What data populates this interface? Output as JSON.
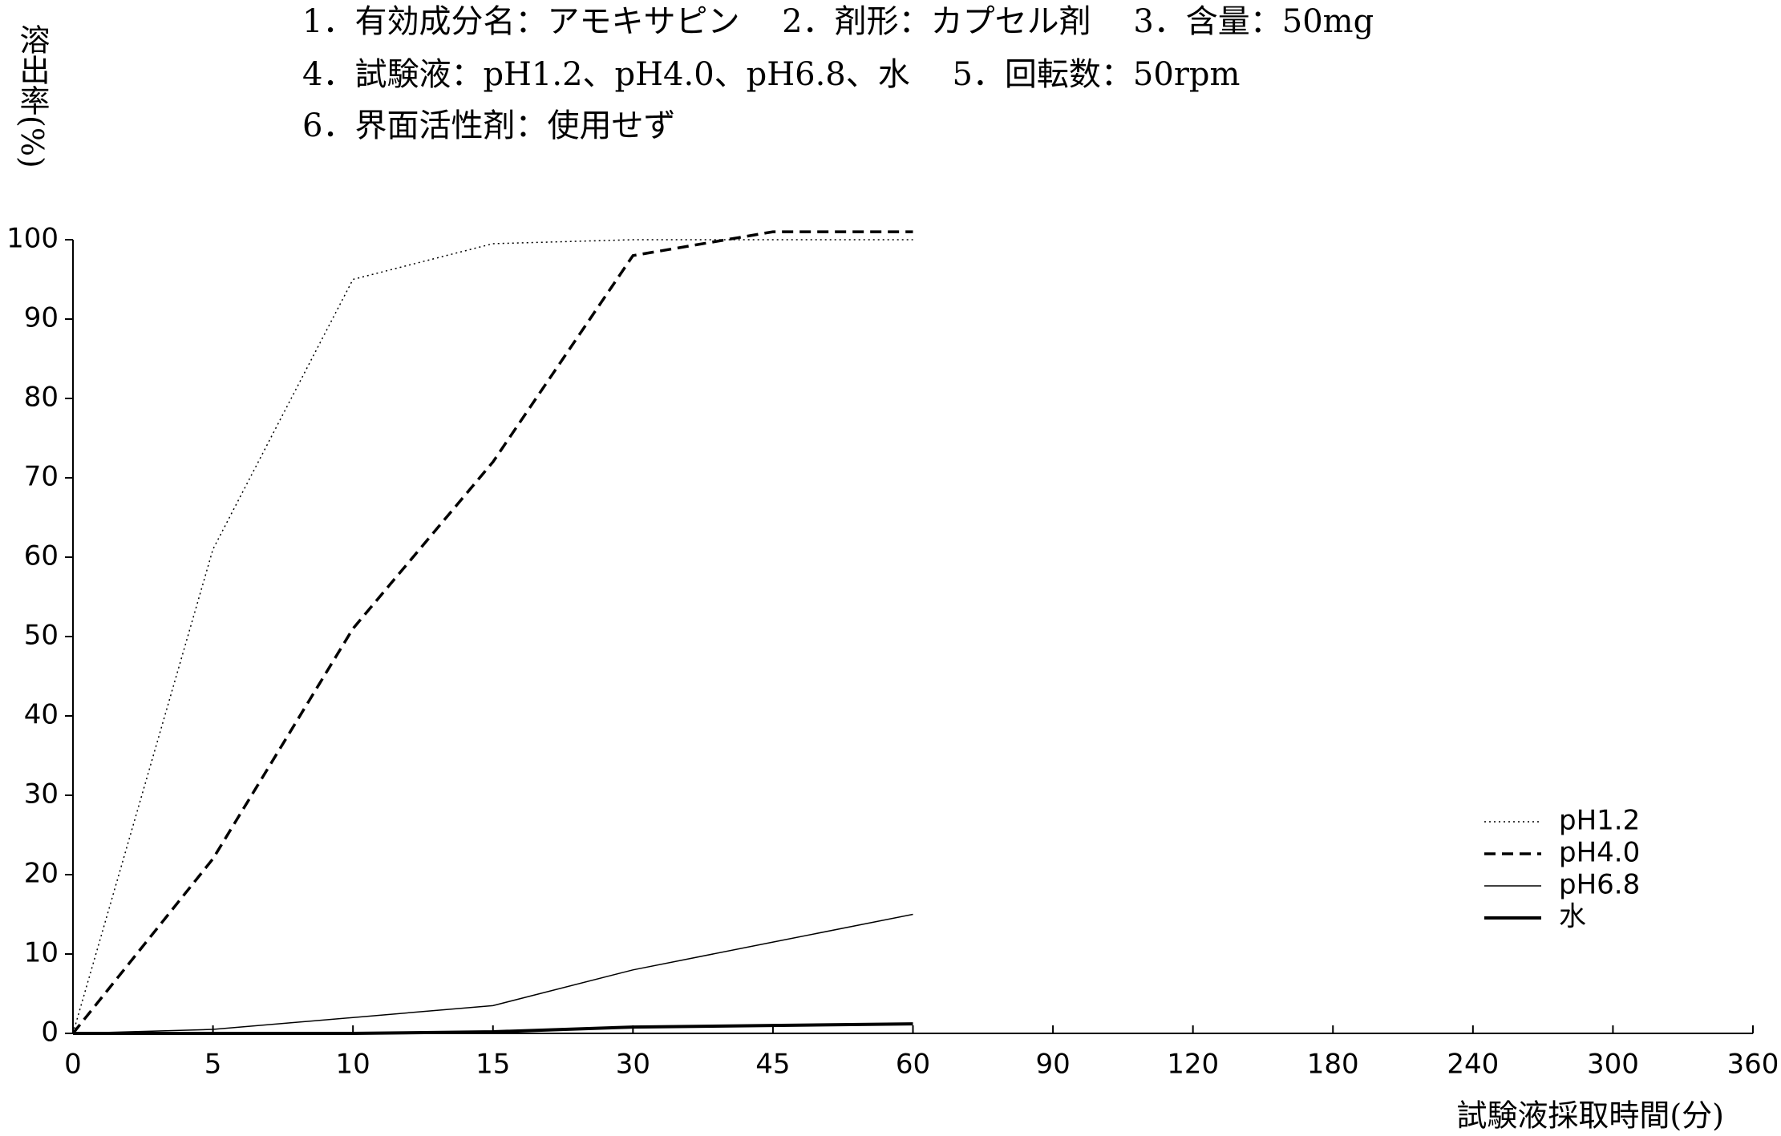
{
  "chart_data": {
    "type": "line",
    "title_lines": [
      "1．有効成分名：アモキサピン　 2．剤形：カプセル剤　 3．含量：50mg",
      "4．試験液：pH1.2、pH4.0、pH6.8、水　 5．回転数：50rpm",
      "6．界面活性剤：使用せず"
    ],
    "y_label": "溶出率(%)",
    "x_label": "試験液採取時間(分)",
    "categories": [
      "0",
      "5",
      "10",
      "15",
      "30",
      "45",
      "60",
      "90",
      "120",
      "180",
      "240",
      "300",
      "360"
    ],
    "series": [
      {
        "name": "pH1.2",
        "color": "#000000",
        "style": "dotted",
        "width": 1.5,
        "values": [
          0,
          61,
          95,
          99.5,
          100,
          100,
          100,
          null,
          null,
          null,
          null,
          null,
          null
        ]
      },
      {
        "name": "pH4.0",
        "color": "#000000",
        "style": "dashed",
        "width": 3.5,
        "values": [
          0,
          22,
          51,
          72,
          98,
          101,
          101,
          null,
          null,
          null,
          null,
          null,
          null
        ]
      },
      {
        "name": "pH6.8",
        "color": "#000000",
        "style": "solid",
        "width": 1.5,
        "values": [
          0,
          0.5,
          2,
          3.5,
          8,
          11.5,
          15,
          null,
          null,
          null,
          null,
          null,
          null
        ]
      },
      {
        "name": "水",
        "color": "#000000",
        "style": "solid",
        "width": 4,
        "values": [
          0,
          0,
          0,
          0.2,
          0.8,
          1,
          1.2,
          null,
          null,
          null,
          null,
          null,
          null
        ]
      }
    ],
    "ylim": [
      0,
      100
    ],
    "yticks": [
      0,
      10,
      20,
      30,
      40,
      50,
      60,
      70,
      80,
      90,
      100
    ],
    "legend": "right"
  }
}
